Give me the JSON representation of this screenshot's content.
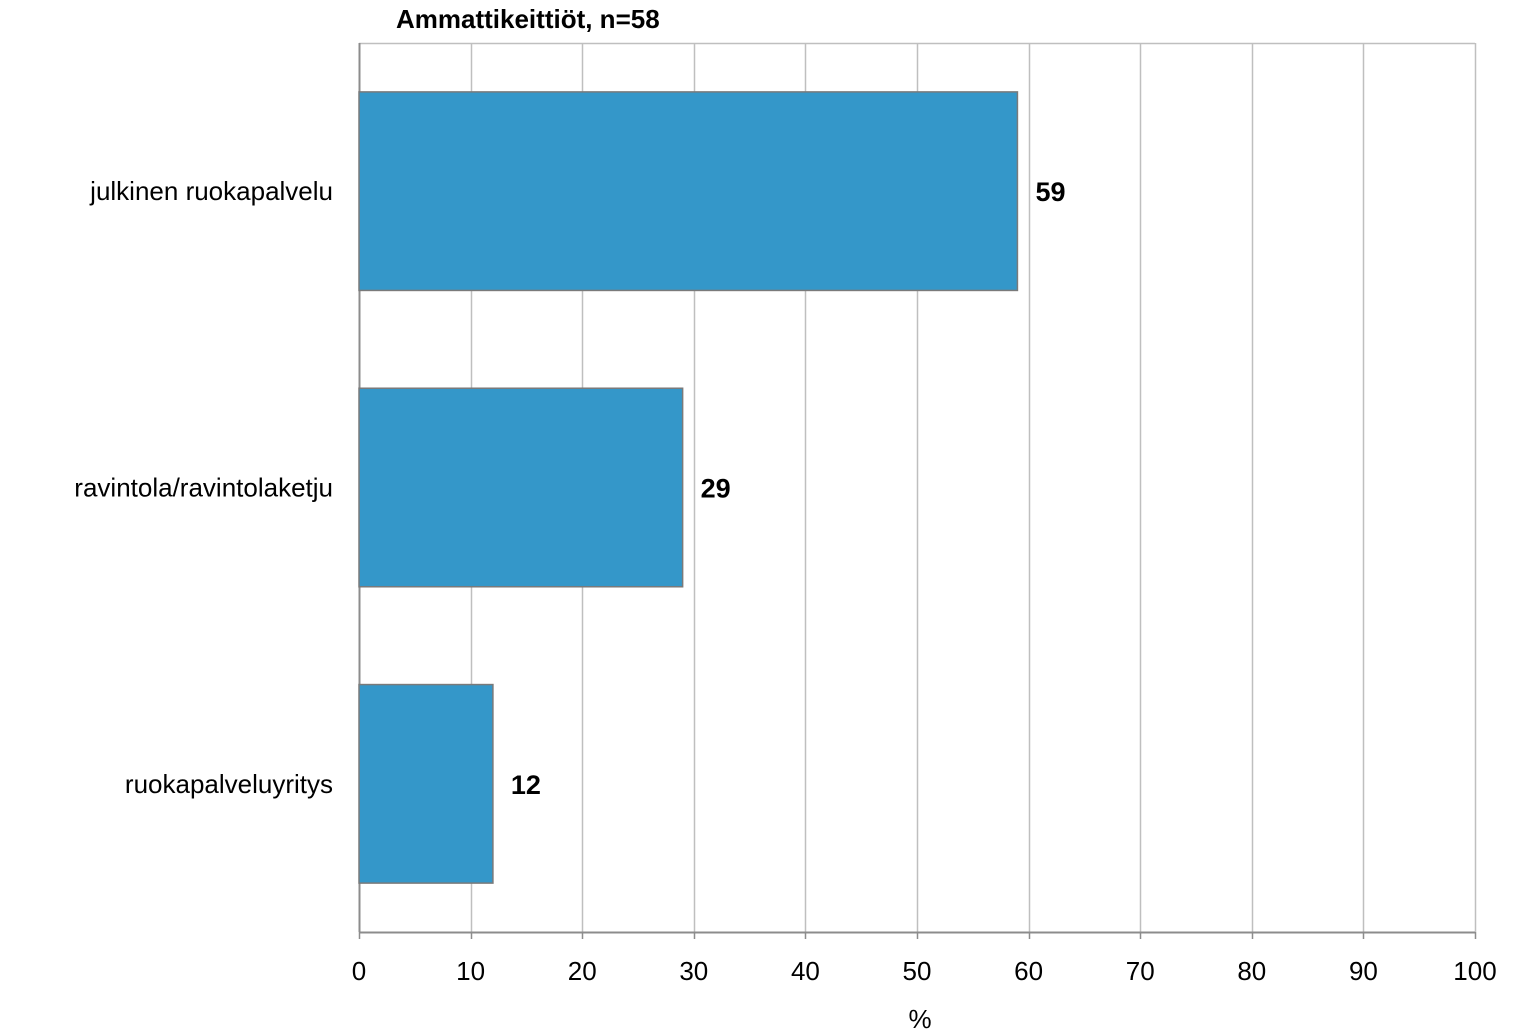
{
  "chart_data": {
    "type": "bar",
    "orientation": "horizontal",
    "title": "Ammattikeittiöt,  n=58",
    "categories": [
      "julkinen ruokapalvelu",
      "ravintola/ravintolaketju",
      "ruokapalveluyritys"
    ],
    "values": [
      59,
      29,
      12
    ],
    "data_labels": [
      "59",
      "29",
      "12"
    ],
    "xlabel": "%",
    "ylabel": "",
    "xlim": [
      0,
      100
    ],
    "x_ticks": [
      0,
      10,
      20,
      30,
      40,
      50,
      60,
      70,
      80,
      90,
      100
    ],
    "x_tick_labels": [
      "0",
      "10",
      "20",
      "30",
      "40",
      "50",
      "60",
      "70",
      "80",
      "90",
      "100"
    ],
    "grid": true,
    "legend": "none",
    "colors": {
      "bar_fill": "#3497c9",
      "bar_stroke": "#7a7a7a",
      "grid": "#bfbfbf",
      "axis": "#8c8c8c",
      "text": "#000000"
    }
  }
}
